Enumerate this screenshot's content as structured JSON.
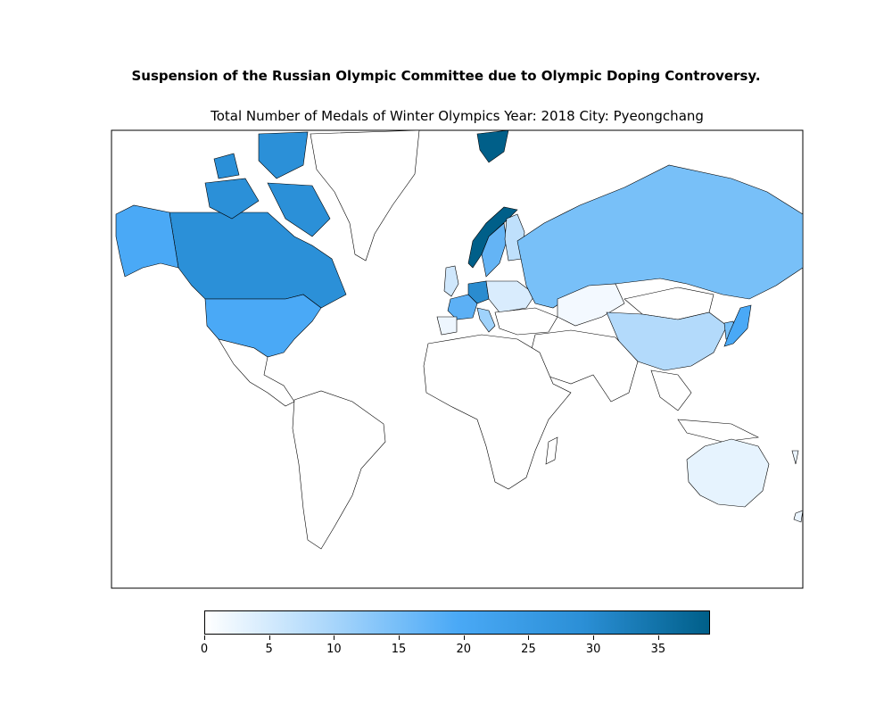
{
  "suptitle": "Suspension of the Russian Olympic Committee due to Olympic Doping Controversy.",
  "subtitle": "Total Number of Medals of Winter Olympics  Year: 2018  City: Pyeongchang",
  "colorbar": {
    "min": 0,
    "max": 39,
    "ticks": [
      "0",
      "5",
      "10",
      "15",
      "20",
      "25",
      "30",
      "35"
    ],
    "tick_values": [
      0,
      5,
      10,
      15,
      20,
      25,
      30,
      35
    ],
    "colors": [
      "#ffffff",
      "#a9d6fb",
      "#4aa9f6",
      "#2b8fd6",
      "#005f89"
    ]
  },
  "chart_data": {
    "type": "choropleth",
    "metric": "total medals",
    "regions": [
      {
        "name": "Norway",
        "value": 39
      },
      {
        "name": "Canada",
        "value": 29
      },
      {
        "name": "Germany",
        "value": 31
      },
      {
        "name": "United States",
        "value": 23
      },
      {
        "name": "Netherlands",
        "value": 20
      },
      {
        "name": "Sweden",
        "value": 14
      },
      {
        "name": "Switzerland",
        "value": 15
      },
      {
        "name": "France",
        "value": 15
      },
      {
        "name": "Austria",
        "value": 14
      },
      {
        "name": "Japan",
        "value": 13
      },
      {
        "name": "Italy",
        "value": 10
      },
      {
        "name": "Russia (OAR)",
        "value": 17
      },
      {
        "name": "South Korea",
        "value": 17
      },
      {
        "name": "China",
        "value": 9
      },
      {
        "name": "Czech Republic",
        "value": 7
      },
      {
        "name": "Finland",
        "value": 6
      },
      {
        "name": "Great Britain",
        "value": 5
      },
      {
        "name": "Belarus",
        "value": 3
      },
      {
        "name": "Slovakia",
        "value": 4
      },
      {
        "name": "Australia",
        "value": 3
      },
      {
        "name": "Poland",
        "value": 2
      },
      {
        "name": "Slovenia",
        "value": 2
      },
      {
        "name": "Spain",
        "value": 2
      },
      {
        "name": "Ukraine",
        "value": 1
      },
      {
        "name": "Belgium",
        "value": 1
      },
      {
        "name": "New Zealand",
        "value": 2
      },
      {
        "name": "Hungary",
        "value": 1
      },
      {
        "name": "Liechtenstein",
        "value": 1
      },
      {
        "name": "Kazakhstan",
        "value": 1
      }
    ]
  }
}
